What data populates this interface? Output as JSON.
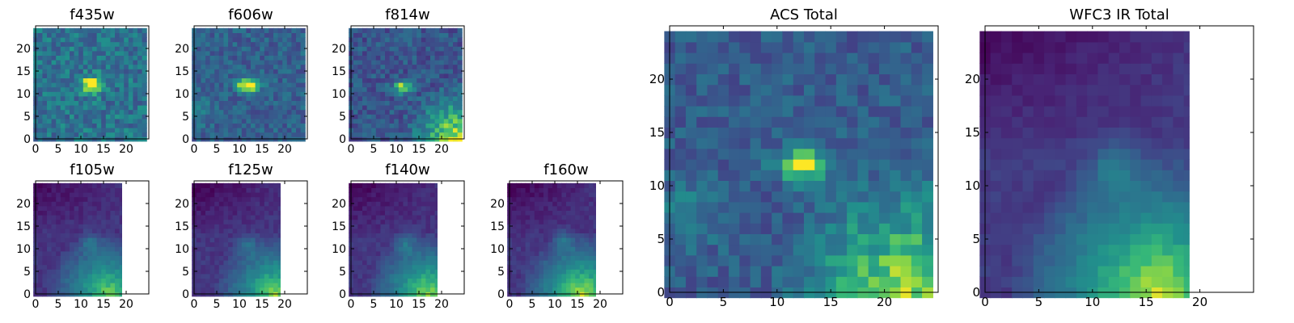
{
  "chart_data": [
    {
      "type": "heatmap",
      "title": "f435w",
      "colormap": "viridis",
      "xlim": [
        0,
        25
      ],
      "ylim": [
        0,
        25
      ],
      "xticks": [
        0,
        5,
        10,
        15,
        20
      ],
      "yticks": [
        0,
        5,
        10,
        15,
        20
      ],
      "data_extent_x": 25,
      "data_extent_y": 25,
      "blobs": [
        {
          "x": 12.5,
          "y": 12,
          "sx": 1.6,
          "sy": 1.2,
          "a": 0.72
        }
      ],
      "gradients": [],
      "noise": 0.17,
      "background": 0.48
    },
    {
      "type": "heatmap",
      "title": "f606w",
      "colormap": "viridis",
      "xlim": [
        0,
        25
      ],
      "ylim": [
        0,
        25
      ],
      "xticks": [
        0,
        5,
        10,
        15,
        20
      ],
      "yticks": [
        0,
        5,
        10,
        15,
        20
      ],
      "data_extent_x": 25,
      "data_extent_y": 25,
      "blobs": [
        {
          "x": 12,
          "y": 12,
          "sx": 1.8,
          "sy": 1.1,
          "a": 0.75
        },
        {
          "x": 0.5,
          "y": 6.5,
          "sx": 2.0,
          "sy": 2.0,
          "a": 0.25
        }
      ],
      "gradients": [],
      "noise": 0.13,
      "background": 0.38
    },
    {
      "type": "heatmap",
      "title": "f814w",
      "colormap": "viridis",
      "xlim": [
        0,
        25
      ],
      "ylim": [
        0,
        25
      ],
      "xticks": [
        0,
        5,
        10,
        15,
        20
      ],
      "yticks": [
        0,
        5,
        10,
        15,
        20
      ],
      "data_extent_x": 25,
      "data_extent_y": 25,
      "blobs": [
        {
          "x": 11.5,
          "y": 11.5,
          "sx": 1.6,
          "sy": 1.1,
          "a": 0.55
        }
      ],
      "gradients": [
        {
          "x": 24,
          "y": 0,
          "r": 13,
          "a": 0.65
        }
      ],
      "noise": 0.14,
      "background": 0.33
    },
    {
      "type": "heatmap",
      "title": "f105w",
      "colormap": "viridis",
      "xlim": [
        0,
        25
      ],
      "ylim": [
        0,
        25
      ],
      "xticks": [
        0,
        5,
        10,
        15,
        20
      ],
      "yticks": [
        0,
        5,
        10,
        15,
        20
      ],
      "data_extent_x": 19.5,
      "data_extent_y": 25,
      "blobs": [
        {
          "x": 12,
          "y": 11.5,
          "sx": 1.6,
          "sy": 1.6,
          "a": 0.2
        }
      ],
      "gradients": [
        {
          "x": 16,
          "y": 0,
          "r": 14,
          "a": 0.65
        }
      ],
      "noise": 0.05,
      "background": 0.2,
      "topdark": 0.18
    },
    {
      "type": "heatmap",
      "title": "f125w",
      "colormap": "viridis",
      "xlim": [
        0,
        25
      ],
      "ylim": [
        0,
        25
      ],
      "xticks": [
        0,
        5,
        10,
        15,
        20
      ],
      "yticks": [
        0,
        5,
        10,
        15,
        20
      ],
      "data_extent_x": 19.5,
      "data_extent_y": 25,
      "blobs": [
        {
          "x": 11.5,
          "y": 11,
          "sx": 1.6,
          "sy": 1.6,
          "a": 0.22
        }
      ],
      "gradients": [
        {
          "x": 18,
          "y": 0,
          "r": 14,
          "a": 0.68
        }
      ],
      "noise": 0.05,
      "background": 0.2,
      "topdark": 0.2
    },
    {
      "type": "heatmap",
      "title": "f140w",
      "colormap": "viridis",
      "xlim": [
        0,
        25
      ],
      "ylim": [
        0,
        25
      ],
      "xticks": [
        0,
        5,
        10,
        15,
        20
      ],
      "yticks": [
        0,
        5,
        10,
        15,
        20
      ],
      "data_extent_x": 19.5,
      "data_extent_y": 25,
      "blobs": [
        {
          "x": 12,
          "y": 11.5,
          "sx": 1.6,
          "sy": 1.6,
          "a": 0.22
        }
      ],
      "gradients": [
        {
          "x": 17,
          "y": 0,
          "r": 14,
          "a": 0.68
        }
      ],
      "noise": 0.05,
      "background": 0.2,
      "topdark": 0.2
    },
    {
      "type": "heatmap",
      "title": "f160w",
      "colormap": "viridis",
      "xlim": [
        0,
        25
      ],
      "ylim": [
        0,
        25
      ],
      "xticks": [
        0,
        5,
        10,
        15,
        20
      ],
      "yticks": [
        0,
        5,
        10,
        15,
        20
      ],
      "data_extent_x": 19.5,
      "data_extent_y": 25,
      "blobs": [
        {
          "x": 12,
          "y": 12,
          "sx": 1.6,
          "sy": 1.6,
          "a": 0.22
        }
      ],
      "gradients": [
        {
          "x": 16,
          "y": 0,
          "r": 14,
          "a": 0.72
        }
      ],
      "noise": 0.05,
      "background": 0.2,
      "topdark": 0.2
    },
    {
      "type": "heatmap",
      "title": "ACS Total",
      "colormap": "viridis",
      "xlim": [
        0,
        25
      ],
      "ylim": [
        0,
        25
      ],
      "xticks": [
        0,
        5,
        10,
        15,
        20
      ],
      "yticks": [
        0,
        5,
        10,
        15,
        20
      ],
      "data_extent_x": 25,
      "data_extent_y": 25,
      "blobs": [
        {
          "x": 12.5,
          "y": 12,
          "sx": 1.8,
          "sy": 1.1,
          "a": 0.62
        },
        {
          "x": 1.5,
          "y": 7.5,
          "sx": 2.2,
          "sy": 2.0,
          "a": 0.2
        }
      ],
      "gradients": [
        {
          "x": 22,
          "y": 0,
          "r": 13,
          "a": 0.55
        }
      ],
      "noise": 0.12,
      "background": 0.36
    },
    {
      "type": "heatmap",
      "title": "WFC3 IR Total",
      "colormap": "viridis",
      "xlim": [
        0,
        25
      ],
      "ylim": [
        0,
        25
      ],
      "xticks": [
        0,
        5,
        10,
        15,
        20
      ],
      "yticks": [
        0,
        5,
        10,
        15,
        20
      ],
      "data_extent_x": 19.5,
      "data_extent_y": 25,
      "blobs": [
        {
          "x": 12,
          "y": 12,
          "sx": 1.8,
          "sy": 1.8,
          "a": 0.22
        }
      ],
      "gradients": [
        {
          "x": 16,
          "y": 0,
          "r": 14,
          "a": 0.72
        }
      ],
      "noise": 0.04,
      "background": 0.22,
      "topdark": 0.2
    }
  ]
}
